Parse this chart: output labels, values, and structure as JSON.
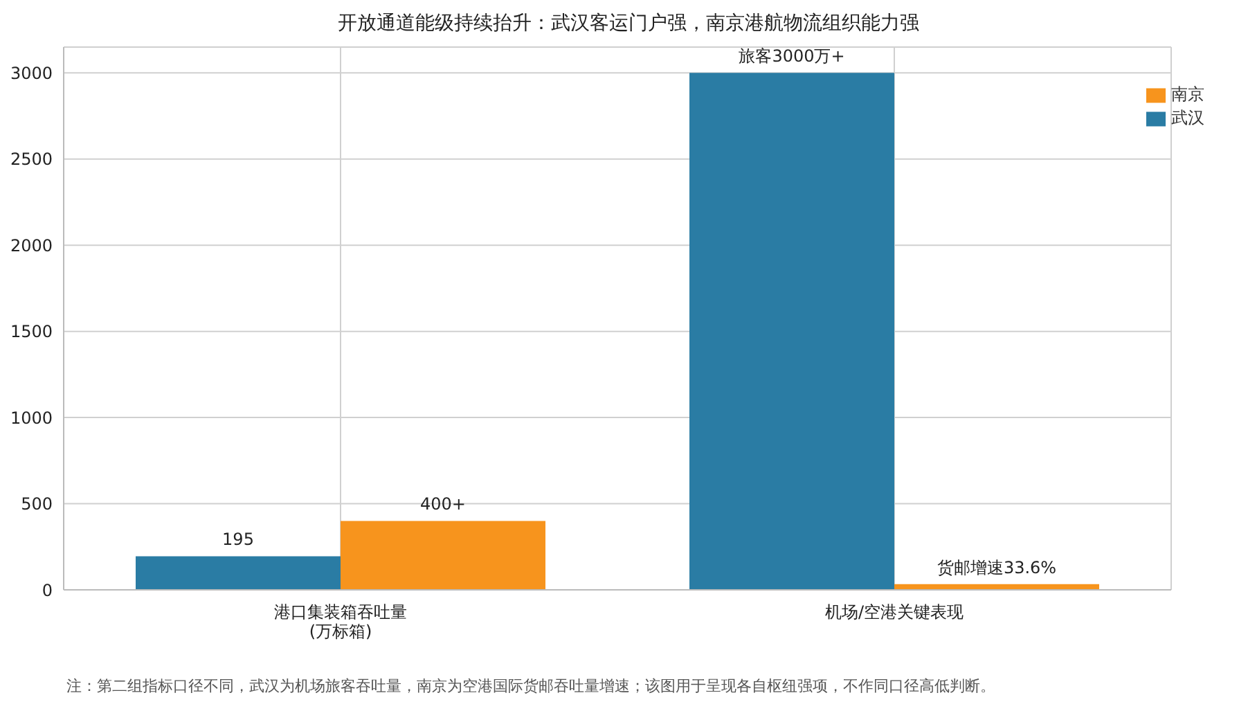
{
  "chart_data": {
    "type": "bar",
    "title": "开放通道能级持续抬升：武汉客运门户强，南京港航物流组织能力强",
    "categories": [
      "港口集装箱吞吐量\n(万标箱)",
      "机场/空港关键表现"
    ],
    "series": [
      {
        "name": "武汉",
        "color": "#2a7ca4",
        "values": [
          195,
          3000
        ],
        "value_labels": [
          "195",
          "旅客3000万+"
        ]
      },
      {
        "name": "南京",
        "color": "#f7941d",
        "values": [
          400,
          33.6
        ],
        "value_labels": [
          "400+",
          "货邮增速33.6%"
        ]
      }
    ],
    "ylim": [
      0,
      3150
    ],
    "yticks": [
      0,
      500,
      1000,
      1500,
      2000,
      2500,
      3000
    ],
    "grid": true,
    "legend": "top right",
    "annotations": [
      "注：第二组指标口径不同，武汉为机场旅客吞吐量，南京为空港国际货邮吞吐量增速；该图用于呈现各自枢纽强项，不作同口径高低判断。"
    ]
  }
}
